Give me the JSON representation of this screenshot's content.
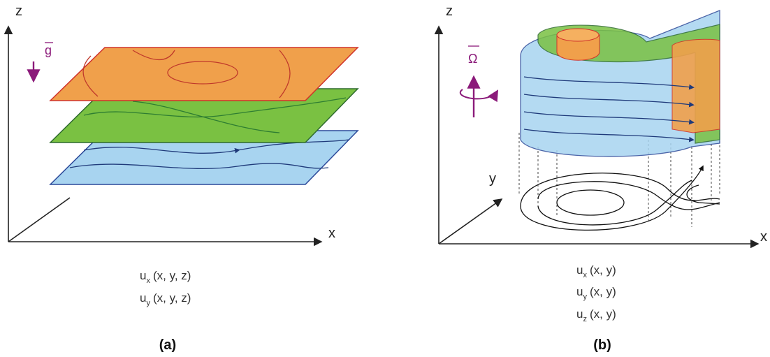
{
  "panels": [
    {
      "axes": {
        "z": "z",
        "x": "x"
      },
      "vector": "g",
      "equations": [
        {
          "symbol": "u",
          "subscript": "x",
          "args": "(x, y, z)"
        },
        {
          "symbol": "u",
          "subscript": "y",
          "args": "(x, y, z)"
        }
      ],
      "caption": "(a)"
    },
    {
      "axes": {
        "z": "z",
        "x": "x",
        "y": "y"
      },
      "vector": "Ω",
      "equations": [
        {
          "symbol": "u",
          "subscript": "x",
          "args": "(x, y)"
        },
        {
          "symbol": "u",
          "subscript": "y",
          "args": "(x, y)"
        },
        {
          "symbol": "u",
          "subscript": "z",
          "args": "(x, y)"
        }
      ],
      "caption": "(b)"
    }
  ]
}
